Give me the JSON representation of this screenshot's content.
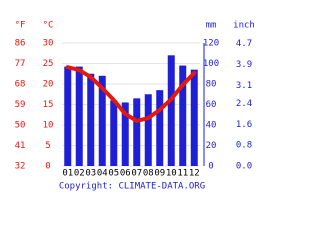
{
  "chart_data": {
    "type": "combo",
    "categories": [
      "01",
      "02",
      "03",
      "04",
      "05",
      "06",
      "07",
      "08",
      "09",
      "10",
      "11",
      "12"
    ],
    "series": [
      {
        "name": "mm",
        "type": "bar",
        "axis": "y2",
        "color": "#1f1fd6",
        "values": [
          97,
          97,
          90,
          88,
          64,
          62,
          66,
          70,
          74,
          108,
          98,
          94
        ]
      },
      {
        "name": "°C",
        "type": "line",
        "axis": "y",
        "color": "#e8170c",
        "values": [
          24.1,
          23.4,
          21.7,
          19,
          16.1,
          12.7,
          11,
          11.7,
          13.7,
          16.3,
          19.8,
          22.7
        ]
      }
    ],
    "y_label": "°C",
    "ylim": [
      0,
      30
    ],
    "yticks": [
      0,
      5,
      10,
      15,
      20,
      25,
      30
    ],
    "y3_label": "°F",
    "y3lim": [
      32,
      86
    ],
    "y3ticks": [
      32,
      41,
      50,
      59,
      68,
      77,
      86
    ],
    "y2_label": "mm",
    "y2lim": [
      0,
      120
    ],
    "y2ticks": [
      0,
      20,
      40,
      60,
      80,
      100,
      120
    ],
    "y4_label": "inch",
    "y4lim": [
      0,
      4.724
    ],
    "y4ticks": [
      {
        "value": 0,
        "label": "0.0"
      },
      0.8,
      1.6,
      2.4,
      3.1,
      3.9,
      4.7
    ],
    "grid": true,
    "footer": "Copyright: CLIMATE-DATA.ORG"
  }
}
